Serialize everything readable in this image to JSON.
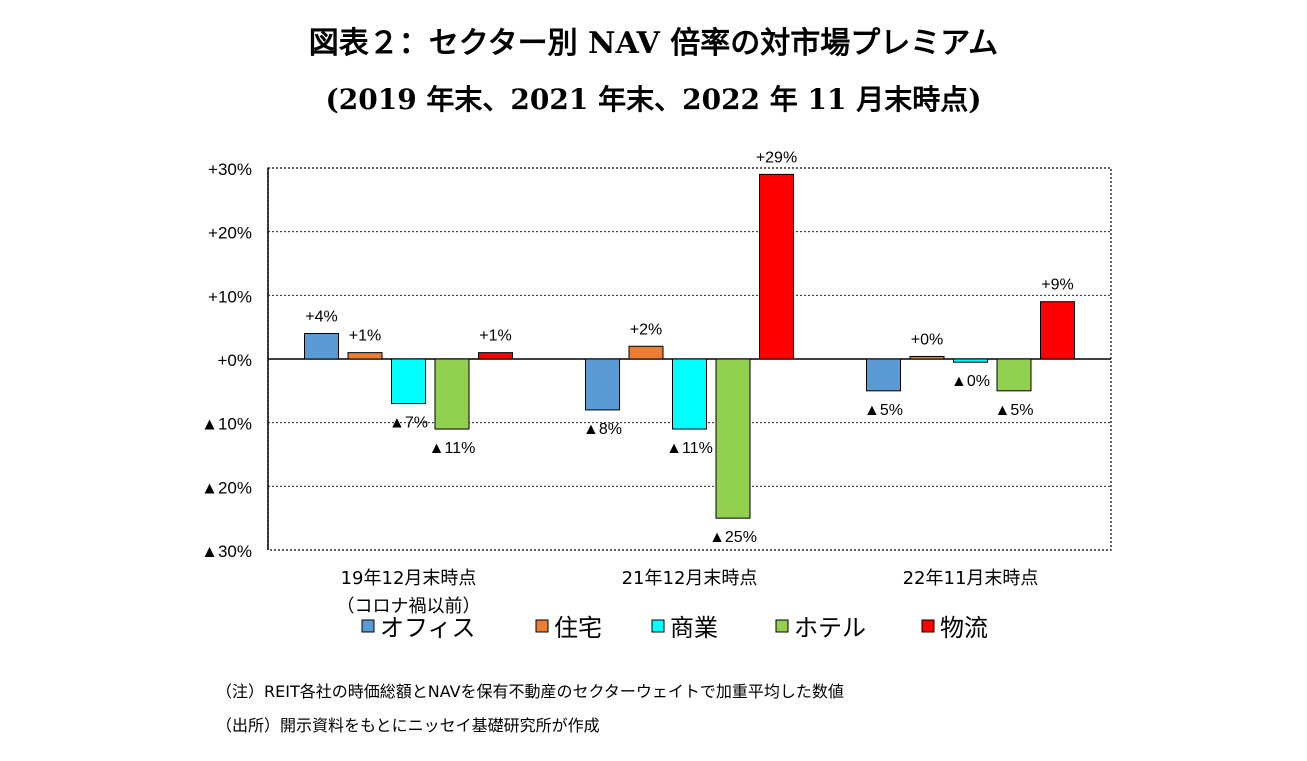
{
  "title_line1": "図表２：セクター別 NAV 倍率の対市場プレミアム",
  "title_line2": "(2019 年末、2021 年末、2022 年 11 月末時点)",
  "note": "（注）REIT各社の時価総額とNAVを保有不動産のセクターウェイトで加重平均した数値",
  "source": "（出所）開示資料をもとにニッセイ基礎研究所が作成",
  "chart_data": {
    "type": "bar",
    "title": "図表２：セクター別 NAV 倍率の対市場プレミアム",
    "categories": [
      [
        "19年12月末時点",
        "（コロナ禍以前）"
      ],
      [
        "21年12月末時点"
      ],
      [
        "22年11月末時点"
      ]
    ],
    "series": [
      {
        "name": "オフィス",
        "color": "#5b9bd5",
        "values": [
          4,
          -8,
          -5
        ],
        "labels": [
          "+4%",
          "▲8%",
          "▲5%"
        ]
      },
      {
        "name": "住宅",
        "color": "#ed7d31",
        "values": [
          1,
          2,
          0.4
        ],
        "labels": [
          "+1%",
          "+2%",
          "+0%"
        ]
      },
      {
        "name": "商業",
        "color": "#00ffff",
        "values": [
          -7,
          -11,
          -0.5
        ],
        "labels": [
          "▲7%",
          "▲11%",
          "▲0%"
        ]
      },
      {
        "name": "ホテル",
        "color": "#92d050",
        "values": [
          -11,
          -25,
          -5
        ],
        "labels": [
          "▲11%",
          "▲25%",
          "▲5%"
        ]
      },
      {
        "name": "物流",
        "color": "#ff0000",
        "values": [
          1,
          29,
          9
        ],
        "labels": [
          "+1%",
          "+29%",
          "+9%"
        ]
      }
    ],
    "ylim": [
      -30,
      30
    ],
    "yticks": [
      30,
      20,
      10,
      0,
      -10,
      -20,
      -30
    ],
    "ytick_labels": [
      "+30%",
      "+20%",
      "+10%",
      "+0%",
      "▲10%",
      "▲20%",
      "▲30%"
    ],
    "grid": true,
    "legend": "bottom"
  }
}
